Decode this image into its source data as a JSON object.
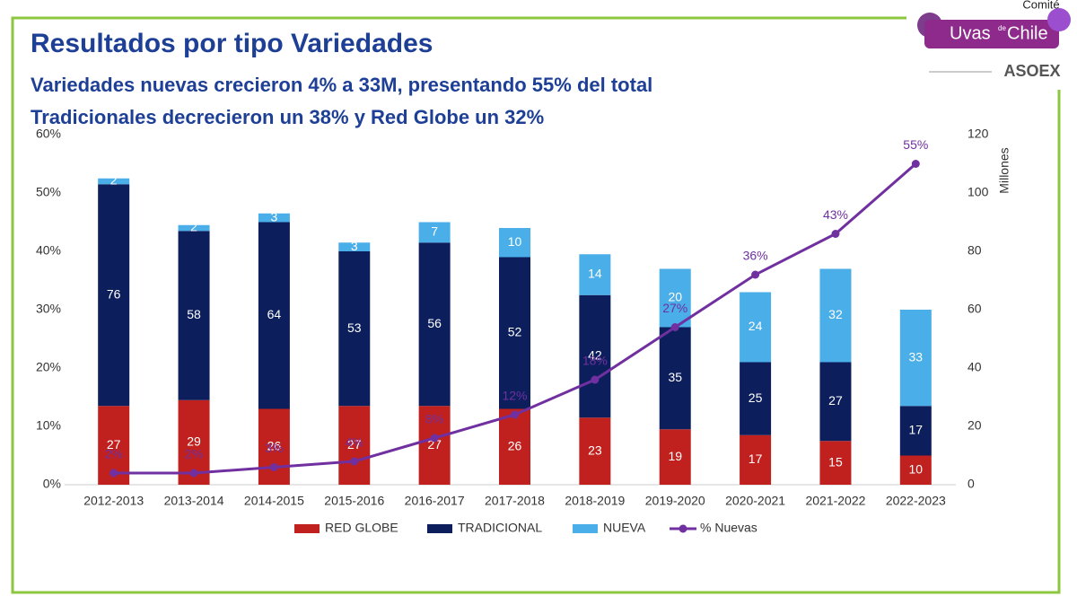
{
  "header": {
    "title": "Resultados por tipo Variedades",
    "subtitles": [
      "Variedades nuevas crecieron 4% a 33M, presentando 55% del total",
      "Tradicionales decrecieron un 38% y Red Globe un 32%"
    ],
    "logo": {
      "top": "Comité",
      "brand": "Uvas",
      "de": "de",
      "country": "Chile",
      "org": "ASOEX"
    }
  },
  "chart_data": {
    "type": "bar",
    "stacked": true,
    "categories": [
      "2012-2013",
      "2013-2014",
      "2014-2015",
      "2015-2016",
      "2016-2017",
      "2017-2018",
      "2018-2019",
      "2019-2020",
      "2020-2021",
      "2021-2022",
      "2022-2023"
    ],
    "series": [
      {
        "name": "RED GLOBE",
        "color": "#c0211f",
        "axis": "y2",
        "values": [
          27,
          29,
          26,
          27,
          27,
          26,
          23,
          19,
          17,
          15,
          10
        ]
      },
      {
        "name": "TRADICIONAL",
        "color": "#0c1f5c",
        "axis": "y2",
        "values": [
          76,
          58,
          64,
          53,
          56,
          52,
          42,
          35,
          25,
          27,
          17
        ]
      },
      {
        "name": "NUEVA",
        "color": "#4aaee8",
        "axis": "y2",
        "values": [
          2,
          2,
          3,
          3,
          7,
          10,
          14,
          20,
          24,
          32,
          33
        ]
      },
      {
        "name": "% Nuevas",
        "color": "#7030a0",
        "type": "line",
        "values": [
          2,
          2,
          3,
          4,
          8,
          12,
          18,
          27,
          36,
          43,
          55
        ],
        "value_labels": [
          "2%",
          "2%",
          "3%",
          "4%",
          "8%",
          "12%",
          "18%",
          "27%",
          "36%",
          "43%",
          "55%"
        ]
      }
    ],
    "ylim": [
      0,
      60
    ],
    "yticks": [
      {
        "value": 0,
        "label": "0%"
      },
      {
        "value": 10,
        "label": "10%"
      },
      {
        "value": 20,
        "label": "20%"
      },
      {
        "value": 30,
        "label": "30%"
      },
      {
        "value": 40,
        "label": "40%"
      },
      {
        "value": 50,
        "label": "50%"
      },
      {
        "value": 60,
        "label": "60%"
      }
    ],
    "y2lim": [
      0,
      120
    ],
    "y2ticks": [
      0,
      20,
      40,
      60,
      80,
      100,
      120
    ],
    "y2label": "Millones",
    "legend": "bottom"
  }
}
